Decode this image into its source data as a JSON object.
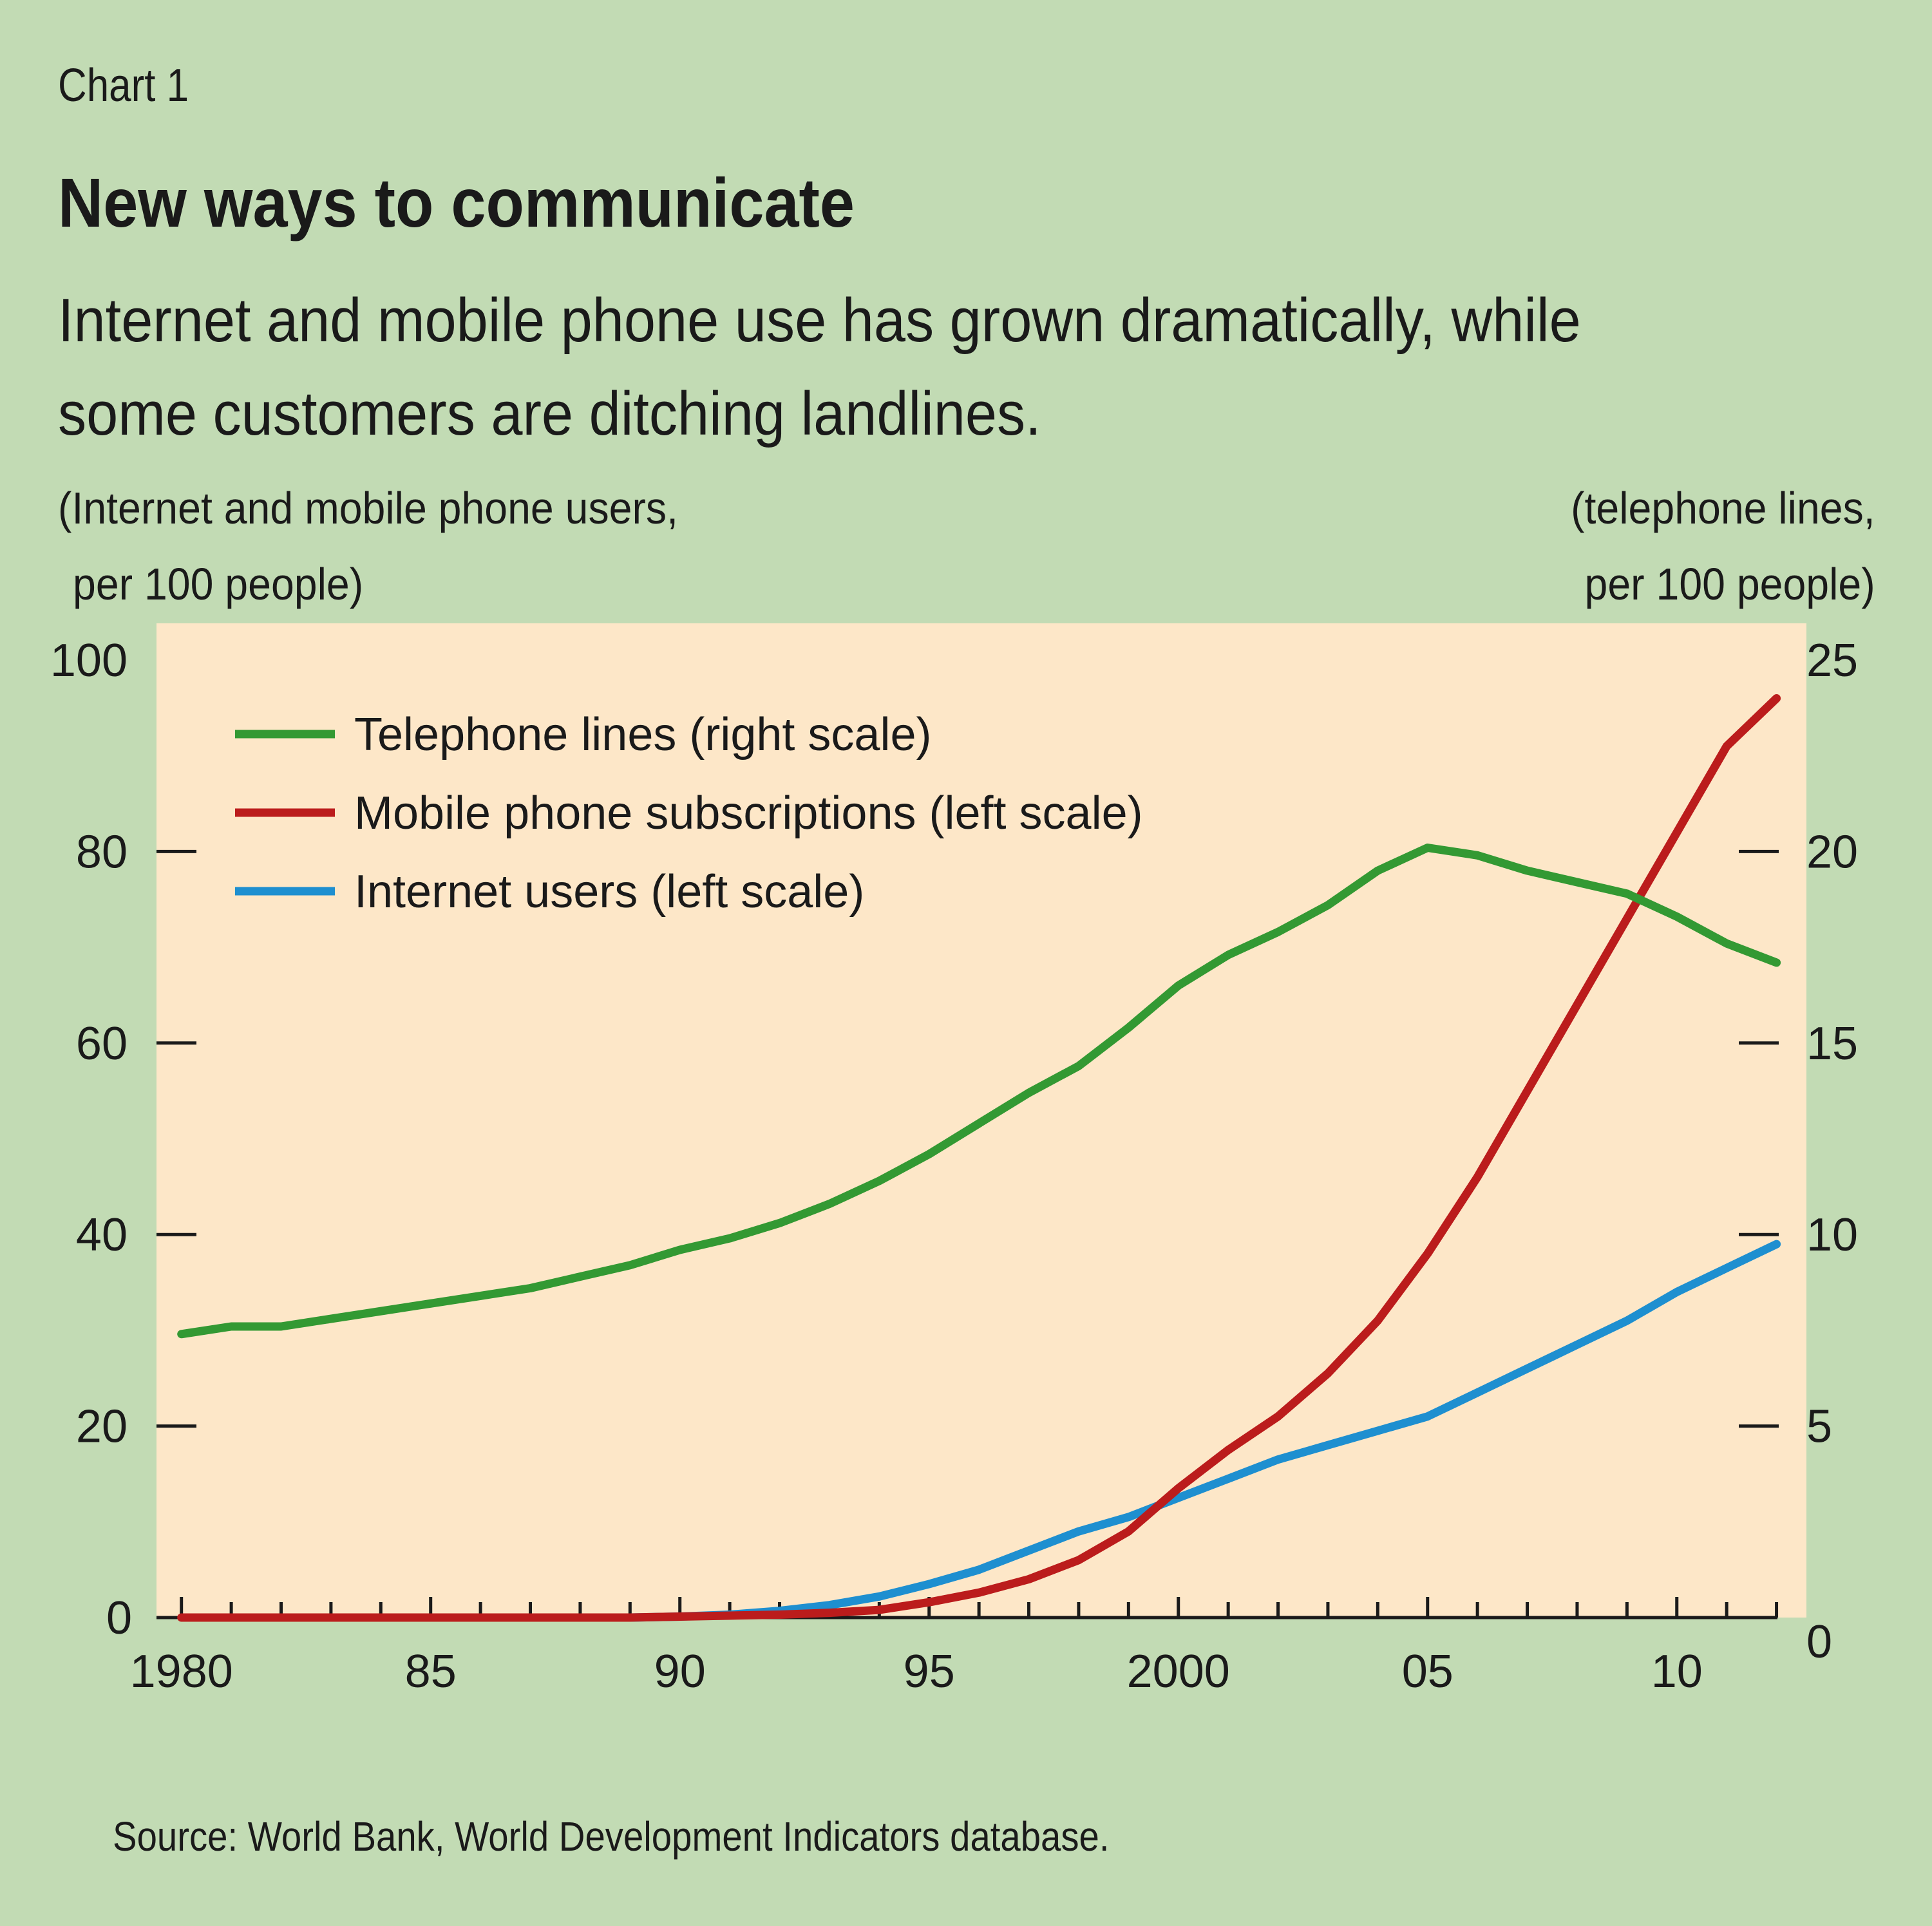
{
  "header": {
    "chart_label": "Chart 1",
    "title": "New ways to communicate",
    "subtitle": "Internet and mobile phone use has grown dramatically, while some customers are ditching landlines."
  },
  "axes": {
    "left_title_line1": "(Internet and mobile phone users,",
    "left_title_line2": "per 100 people)",
    "right_title_line1": "(telephone lines,",
    "right_title_line2": "per 100 people)"
  },
  "footer": {
    "source": "Source: World Bank, World Development Indicators database."
  },
  "colors": {
    "background": "#c2dbb4",
    "plot_background": "#fde7c8",
    "telephone": "#339933",
    "mobile": "#bb1c1c",
    "internet": "#1e8fd0",
    "axis": "#1a1a1a"
  },
  "chart_data": {
    "type": "line",
    "title": "New ways to communicate",
    "xlabel": "",
    "ylabel": "(Internet and mobile phone users, per 100 people)",
    "y2label": "(telephone lines, per 100 people)",
    "xlim": [
      1980,
      2012
    ],
    "ylim": [
      0,
      100
    ],
    "y2lim": [
      0,
      25
    ],
    "x_ticks": [
      1980,
      1985,
      1990,
      1995,
      2000,
      2005,
      2010
    ],
    "x_tick_labels": [
      "1980",
      "85",
      "90",
      "95",
      "2000",
      "05",
      "10"
    ],
    "y_ticks": [
      0,
      20,
      40,
      60,
      80,
      100
    ],
    "y_tick_labels": [
      "0",
      "20",
      "40",
      "60",
      "80",
      "100"
    ],
    "y2_ticks": [
      0,
      5,
      10,
      15,
      20,
      25
    ],
    "y2_tick_labels": [
      "0",
      "5",
      "10",
      "15",
      "20",
      "25"
    ],
    "legend_position": "top-left",
    "grid": false,
    "x": [
      1980,
      1981,
      1982,
      1983,
      1984,
      1985,
      1986,
      1987,
      1988,
      1989,
      1990,
      1991,
      1992,
      1993,
      1994,
      1995,
      1996,
      1997,
      1998,
      1999,
      2000,
      2001,
      2002,
      2003,
      2004,
      2005,
      2006,
      2007,
      2008,
      2009,
      2010,
      2011,
      2012
    ],
    "series": [
      {
        "name": "Telephone lines (right scale)",
        "axis": "right",
        "color": "#339933",
        "values": [
          7.4,
          7.6,
          7.6,
          7.8,
          8.0,
          8.2,
          8.4,
          8.6,
          8.9,
          9.2,
          9.6,
          9.9,
          10.3,
          10.8,
          11.4,
          12.1,
          12.9,
          13.7,
          14.4,
          15.4,
          16.5,
          17.3,
          17.9,
          18.6,
          19.5,
          20.1,
          19.9,
          19.5,
          19.2,
          18.9,
          18.3,
          17.6,
          17.1
        ],
        "x": [
          1980,
          1981,
          1982,
          1983,
          1984,
          1985,
          1986,
          1987,
          1988,
          1989,
          1990,
          1991,
          1992,
          1993,
          1994,
          1995,
          1996,
          1997,
          1998,
          1999,
          2000,
          2001,
          2002,
          2003,
          2004,
          2005,
          2006,
          2007,
          2008,
          2009,
          2010,
          2011,
          2012
        ]
      },
      {
        "name": "Mobile phone subscriptions (left scale)",
        "axis": "left",
        "color": "#bb1c1c",
        "values": [
          0,
          0,
          0,
          0,
          0,
          0,
          0,
          0,
          0,
          0,
          0.1,
          0.2,
          0.3,
          0.5,
          0.8,
          1.6,
          2.6,
          4.0,
          6.0,
          9.0,
          13.5,
          17.5,
          21.0,
          25.5,
          31.0,
          38.0,
          46.0,
          55.0,
          64.0,
          73.0,
          82.0,
          91.0,
          96.0
        ],
        "x": [
          1980,
          1981,
          1982,
          1983,
          1984,
          1985,
          1986,
          1987,
          1988,
          1989,
          1990,
          1991,
          1992,
          1993,
          1994,
          1995,
          1996,
          1997,
          1998,
          1999,
          2000,
          2001,
          2002,
          2003,
          2004,
          2005,
          2006,
          2007,
          2008,
          2009,
          2010,
          2011,
          2012
        ]
      },
      {
        "name": "Internet users (left scale)",
        "axis": "left",
        "color": "#1e8fd0",
        "values": [
          0,
          0.1,
          0.3,
          0.7,
          1.3,
          2.2,
          3.5,
          5.0,
          7.0,
          9.0,
          10.5,
          12.5,
          14.5,
          16.5,
          18.0,
          19.5,
          21.0,
          23.5,
          26.0,
          28.5,
          31.0,
          34.0,
          36.5,
          39.0
        ],
        "x": [
          1989,
          1990,
          1991,
          1992,
          1993,
          1994,
          1995,
          1996,
          1997,
          1998,
          1999,
          2000,
          2001,
          2002,
          2003,
          2004,
          2005,
          2006,
          2007,
          2008,
          2009,
          2010,
          2011,
          2012
        ]
      }
    ]
  }
}
